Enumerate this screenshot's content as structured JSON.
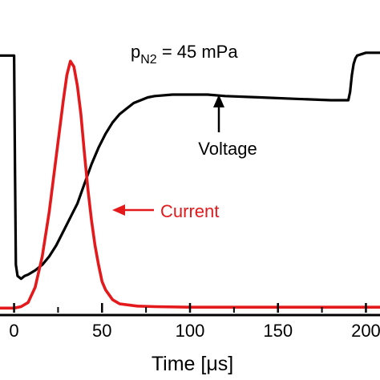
{
  "chart_data": {
    "type": "line",
    "xlabel": "Time [μs]",
    "ylabel": "",
    "xlim": [
      -8,
      208
    ],
    "ylim": [
      0,
      1
    ],
    "x_ticks": [
      0,
      50,
      100,
      150,
      200
    ],
    "x_tick_labels": [
      "0",
      "50",
      "100",
      "150",
      "200"
    ],
    "grid": false,
    "legend": "none",
    "title": {
      "main": "p",
      "subscript": "N2",
      "rest": " = 45 mPa"
    },
    "series": [
      {
        "color": "#000000",
        "x": [
          -8,
          -1,
          0,
          0.5,
          1,
          2,
          4,
          6,
          8,
          12,
          16,
          20,
          24,
          28,
          32,
          36,
          40,
          44,
          48,
          52,
          56,
          60,
          64,
          68,
          72,
          76,
          80,
          90,
          100,
          110,
          120,
          140,
          160,
          180,
          190,
          191,
          192,
          193,
          194,
          195,
          200,
          208
        ],
        "y": [
          0.91,
          0.91,
          0.91,
          0.5,
          0.16,
          0.12,
          0.11,
          0.12,
          0.125,
          0.14,
          0.16,
          0.19,
          0.23,
          0.28,
          0.33,
          0.38,
          0.45,
          0.52,
          0.58,
          0.63,
          0.67,
          0.7,
          0.72,
          0.74,
          0.75,
          0.76,
          0.765,
          0.77,
          0.77,
          0.77,
          0.765,
          0.76,
          0.755,
          0.75,
          0.75,
          0.78,
          0.84,
          0.88,
          0.9,
          0.91,
          0.92,
          0.92
        ]
      },
      {
        "color": "#e3191c",
        "x": [
          -8,
          0,
          4,
          8,
          12,
          16,
          20,
          24,
          28,
          30,
          32,
          34,
          36,
          38,
          40,
          42,
          44,
          46,
          48,
          50,
          52,
          56,
          60,
          70,
          80,
          100,
          150,
          200,
          208
        ],
        "y": [
          0.005,
          0.005,
          0.01,
          0.025,
          0.08,
          0.19,
          0.35,
          0.55,
          0.75,
          0.84,
          0.89,
          0.87,
          0.8,
          0.7,
          0.56,
          0.43,
          0.32,
          0.23,
          0.16,
          0.1,
          0.07,
          0.035,
          0.02,
          0.012,
          0.01,
          0.008,
          0.008,
          0.008,
          0.008
        ]
      }
    ],
    "annotations": [
      {
        "text": "Voltage",
        "color": "#000000",
        "points_to": [
          110,
          0.76
        ]
      },
      {
        "text": "Current",
        "color": "#e3191c",
        "points_to": [
          38,
          0.43
        ]
      }
    ]
  }
}
